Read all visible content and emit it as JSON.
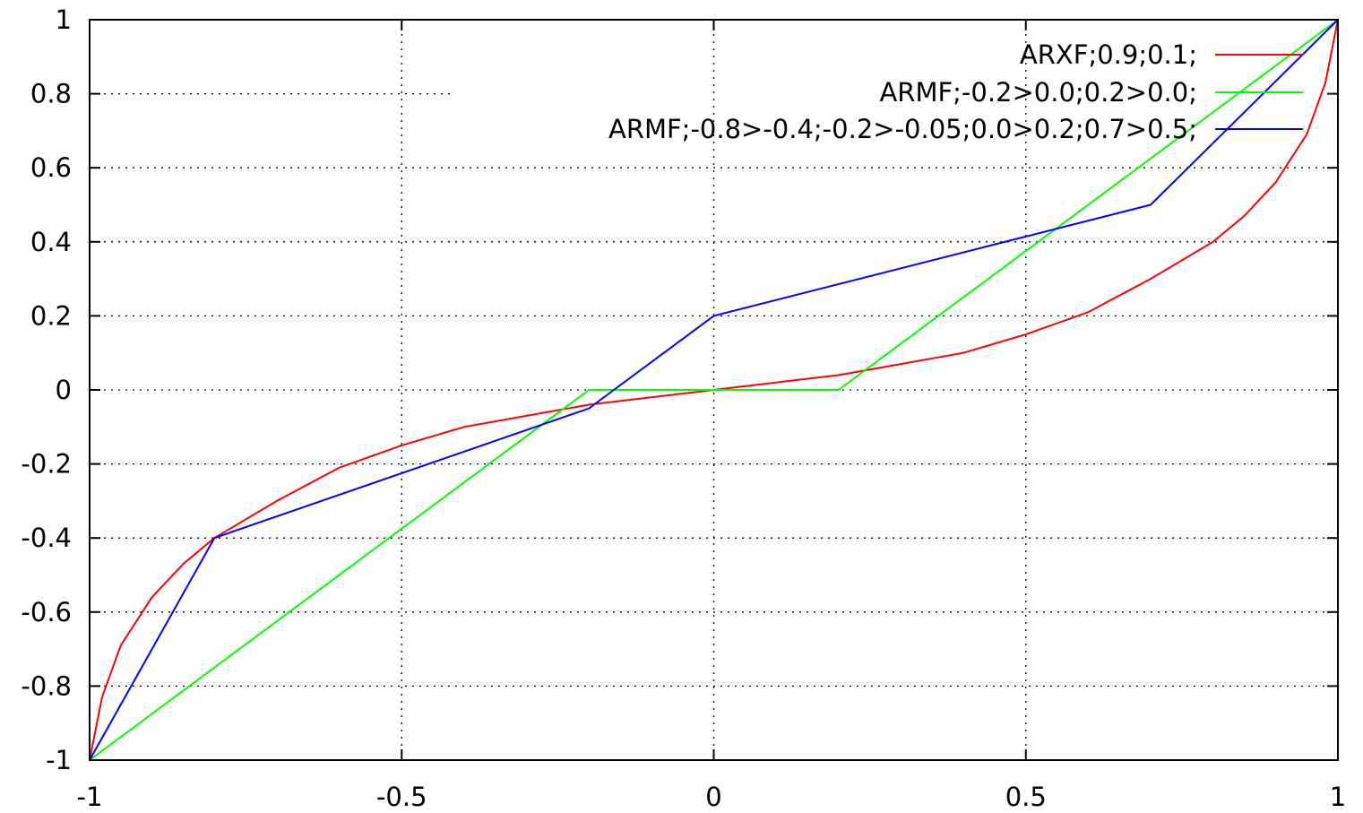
{
  "chart_data": {
    "type": "line",
    "title": "",
    "xlabel": "",
    "ylabel": "",
    "xlim": [
      -1,
      1
    ],
    "ylim": [
      -1,
      1
    ],
    "grid": true,
    "legend_position": "top-right",
    "x_ticks": [
      "-1",
      "-0.5",
      "0",
      "0.5",
      "1"
    ],
    "x_tick_values": [
      -1,
      -0.5,
      0,
      0.5,
      1
    ],
    "y_ticks": [
      "-1",
      "-0.8",
      "-0.6",
      "-0.4",
      "-0.2",
      "0",
      "0.2",
      "0.4",
      "0.6",
      "0.8",
      "1"
    ],
    "y_tick_values": [
      -1,
      -0.8,
      -0.6,
      -0.4,
      -0.2,
      0,
      0.2,
      0.4,
      0.6,
      0.8,
      1
    ],
    "series": [
      {
        "name": "ARXF;0.9;0.1;",
        "color": "#ff0000",
        "x": [
          -1,
          -0.98,
          -0.95,
          -0.9,
          -0.85,
          -0.8,
          -0.7,
          -0.6,
          -0.5,
          -0.4,
          -0.3,
          -0.2,
          -0.1,
          0,
          0.1,
          0.2,
          0.3,
          0.4,
          0.5,
          0.6,
          0.7,
          0.8,
          0.85,
          0.9,
          0.95,
          0.98,
          1
        ],
        "y": [
          -1,
          -0.83,
          -0.69,
          -0.56,
          -0.47,
          -0.4,
          -0.3,
          -0.21,
          -0.15,
          -0.1,
          -0.07,
          -0.04,
          -0.02,
          0,
          0.02,
          0.04,
          0.07,
          0.1,
          0.15,
          0.21,
          0.3,
          0.4,
          0.47,
          0.56,
          0.69,
          0.83,
          1
        ]
      },
      {
        "name": "ARMF;-0.2>0.0;0.2>0.0;",
        "color": "#00ff00",
        "x": [
          -1,
          -0.2,
          0.2,
          1
        ],
        "y": [
          -1,
          0,
          0,
          1
        ]
      },
      {
        "name": "ARMF;-0.8>-0.4;-0.2>-0.05;0.0>0.2;0.7>0.5;",
        "color": "#0000ff",
        "x": [
          -1,
          -0.8,
          -0.2,
          0,
          0.7,
          1
        ],
        "y": [
          -1,
          -0.4,
          -0.05,
          0.2,
          0.5,
          1
        ]
      }
    ]
  }
}
